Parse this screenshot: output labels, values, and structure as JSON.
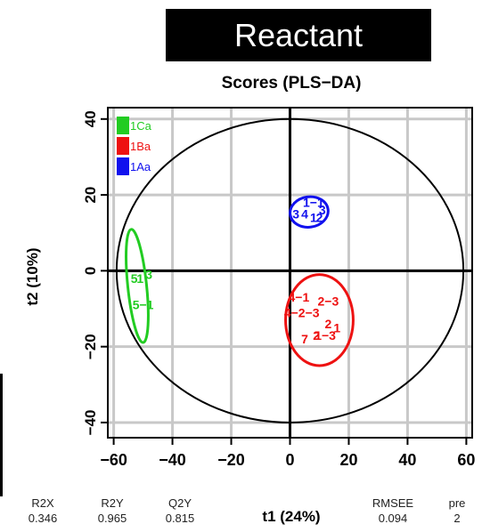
{
  "banner": {
    "label": "Reactant"
  },
  "chart_data": {
    "type": "scatter",
    "title": "Scores (PLS−DA)",
    "xlabel": "t1 (24%)",
    "ylabel": "t2 (10%)",
    "xlim": [
      -62,
      62
    ],
    "ylim": [
      -44,
      43
    ],
    "xticks": [
      -60,
      -40,
      -20,
      0,
      20,
      40,
      60
    ],
    "yticks": [
      40,
      20,
      0,
      -20,
      -40
    ],
    "xtick_labels": [
      "−60",
      "−40",
      "−20",
      "0",
      "20",
      "40",
      "60"
    ],
    "ytick_labels": [
      "40",
      "20",
      "0",
      "−20",
      "−40"
    ],
    "grid": true,
    "legend_position": "top-left",
    "hotelling_ellipse": {
      "cx": 0,
      "cy": 0,
      "rx": 59,
      "ry": 40
    },
    "series": [
      {
        "name": "1Ca",
        "color": "#22cc22",
        "ellipse": {
          "cx": -52,
          "cy": -4,
          "rx": 3.2,
          "ry": 15,
          "angle": -6
        },
        "points": [
          {
            "x": -53,
            "y": -2,
            "label": "5"
          },
          {
            "x": -51,
            "y": -2,
            "label": "1"
          },
          {
            "x": -48,
            "y": -1,
            "label": "3"
          },
          {
            "x": -50,
            "y": -9,
            "label": "5−1"
          }
        ]
      },
      {
        "name": "1Ba",
        "color": "#ee1111",
        "ellipse": {
          "cx": 10,
          "cy": -13,
          "rx": 11.5,
          "ry": 12,
          "angle": 0
        },
        "points": [
          {
            "x": 3,
            "y": -7,
            "label": "4−1"
          },
          {
            "x": 13,
            "y": -8,
            "label": "2−3"
          },
          {
            "x": 4,
            "y": -11,
            "label": "4−2−3"
          },
          {
            "x": 13,
            "y": -14,
            "label": "2"
          },
          {
            "x": 16,
            "y": -15,
            "label": "1"
          },
          {
            "x": 5,
            "y": -18,
            "label": "7"
          },
          {
            "x": 9,
            "y": -17,
            "label": "2"
          },
          {
            "x": 12,
            "y": -17,
            "label": "1−3"
          }
        ]
      },
      {
        "name": "1Aa",
        "color": "#1111ee",
        "ellipse": {
          "cx": 6.5,
          "cy": 15.5,
          "rx": 6.5,
          "ry": 4,
          "angle": -8
        },
        "points": [
          {
            "x": 8,
            "y": 18,
            "label": "1−1"
          },
          {
            "x": 2,
            "y": 15,
            "label": "3"
          },
          {
            "x": 5,
            "y": 15,
            "label": "4"
          },
          {
            "x": 8,
            "y": 14,
            "label": "1"
          },
          {
            "x": 10,
            "y": 14,
            "label": "2"
          },
          {
            "x": 11,
            "y": 16,
            "label": "3"
          }
        ]
      }
    ]
  },
  "stats": {
    "r2x": {
      "label": "R2X",
      "value": "0.346"
    },
    "r2y": {
      "label": "R2Y",
      "value": "0.965"
    },
    "q2y": {
      "label": "Q2Y",
      "value": "0.815"
    },
    "rmsee": {
      "label": "RMSEE",
      "value": "0.094"
    },
    "pre": {
      "label": "pre",
      "value": "2"
    }
  }
}
